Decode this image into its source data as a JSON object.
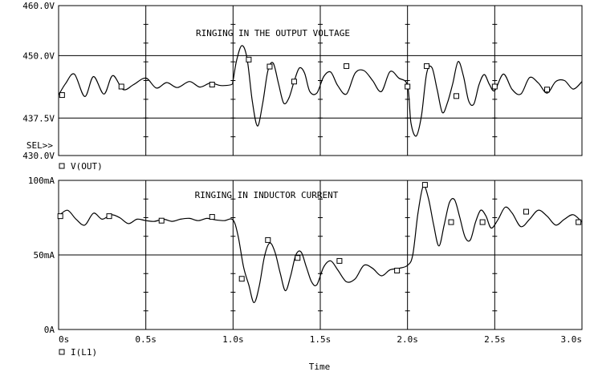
{
  "chart_data": [
    {
      "type": "line",
      "title": "RINGING IN THE OUTPUT VOLTAGE",
      "ylabel": "",
      "xlabel": "",
      "ylim": [
        430,
        460
      ],
      "xlim": [
        0,
        3
      ],
      "yticks": [
        430,
        437.5,
        450,
        460
      ],
      "ytick_labels": [
        "430.0V",
        "437.5V",
        "450.0V",
        "460.0V"
      ],
      "sel_marker": "SEL>>",
      "legend": "V(OUT)",
      "legend_marker": "□",
      "grid": true,
      "series": [
        {
          "name": "V(OUT)",
          "x": [
            0,
            0.04,
            0.09,
            0.15,
            0.2,
            0.26,
            0.31,
            0.37,
            0.43,
            0.5,
            0.56,
            0.62,
            0.68,
            0.75,
            0.81,
            0.87,
            0.93,
            0.99,
            1.0,
            1.02,
            1.05,
            1.08,
            1.11,
            1.14,
            1.17,
            1.2,
            1.23,
            1.26,
            1.29,
            1.32,
            1.35,
            1.38,
            1.41,
            1.44,
            1.48,
            1.52,
            1.56,
            1.6,
            1.65,
            1.7,
            1.75,
            1.8,
            1.85,
            1.9,
            1.95,
            2.0,
            2.02,
            2.05,
            2.08,
            2.11,
            2.14,
            2.17,
            2.2,
            2.23,
            2.26,
            2.29,
            2.32,
            2.35,
            2.38,
            2.41,
            2.44,
            2.47,
            2.5,
            2.55,
            2.6,
            2.65,
            2.7,
            2.75,
            2.8,
            2.85,
            2.9,
            2.95,
            3.0
          ],
          "y": [
            442.1,
            444.4,
            446.3,
            441.8,
            445.8,
            442.3,
            446.0,
            443.2,
            444.2,
            445.5,
            443.5,
            444.6,
            443.6,
            444.8,
            443.7,
            444.5,
            444.0,
            444.2,
            445.0,
            449.0,
            452.0,
            449.5,
            441.0,
            435.9,
            440.5,
            447.0,
            448.5,
            444.5,
            440.5,
            441.5,
            444.8,
            447.5,
            446.5,
            442.8,
            442.5,
            445.8,
            446.7,
            444.0,
            442.3,
            446.5,
            447.0,
            445.0,
            442.8,
            446.8,
            445.5,
            444.0,
            436.5,
            433.9,
            438.0,
            446.5,
            447.6,
            443.2,
            438.6,
            440.7,
            444.5,
            448.8,
            446.0,
            441.0,
            440.3,
            444.2,
            446.2,
            444.2,
            443.0,
            446.3,
            443.2,
            442.3,
            445.6,
            444.5,
            442.5,
            444.8,
            445.0,
            443.3,
            444.8
          ],
          "markers_x": [
            0.02,
            0.36,
            0.88,
            1.09,
            1.21,
            1.35,
            1.65,
            2.0,
            2.11,
            2.28,
            2.5,
            2.8
          ],
          "markers_y": [
            442.1,
            443.8,
            444.2,
            449.2,
            447.8,
            444.8,
            447.9,
            443.8,
            447.9,
            441.9,
            443.8,
            443.2
          ]
        }
      ]
    },
    {
      "type": "line",
      "title": "RINGING IN INDUCTOR CURRENT",
      "ylabel": "",
      "xlabel": "Time",
      "ylim": [
        0,
        100
      ],
      "xlim": [
        0,
        3
      ],
      "yticks": [
        0,
        50,
        100
      ],
      "ytick_labels": [
        "0A",
        "50mA",
        "100mA"
      ],
      "xticks": [
        0,
        0.5,
        1,
        1.5,
        2,
        2.5,
        3
      ],
      "xtick_labels": [
        "0s",
        "0.5s",
        "1.0s",
        "1.5s",
        "2.0s",
        "2.5s",
        "3.0s"
      ],
      "legend": "I(L1)",
      "legend_marker": "□",
      "grid": true,
      "series": [
        {
          "name": "I(L1)",
          "x": [
            0,
            0.05,
            0.1,
            0.15,
            0.2,
            0.25,
            0.3,
            0.35,
            0.4,
            0.45,
            0.5,
            0.55,
            0.6,
            0.65,
            0.7,
            0.75,
            0.8,
            0.85,
            0.9,
            0.95,
            1.0,
            1.03,
            1.06,
            1.09,
            1.12,
            1.15,
            1.18,
            1.21,
            1.24,
            1.27,
            1.3,
            1.33,
            1.36,
            1.39,
            1.42,
            1.45,
            1.48,
            1.52,
            1.56,
            1.6,
            1.65,
            1.7,
            1.75,
            1.8,
            1.85,
            1.9,
            1.95,
            2.0,
            2.03,
            2.06,
            2.09,
            2.12,
            2.15,
            2.18,
            2.21,
            2.24,
            2.27,
            2.3,
            2.33,
            2.36,
            2.39,
            2.42,
            2.45,
            2.48,
            2.52,
            2.56,
            2.6,
            2.65,
            2.7,
            2.75,
            2.8,
            2.85,
            2.9,
            2.95,
            3.0
          ],
          "y": [
            76,
            80,
            74,
            70,
            78,
            74,
            77,
            75,
            71,
            74,
            73,
            72.5,
            74,
            72.5,
            74,
            74.5,
            73,
            74.5,
            73.5,
            73,
            73.5,
            62,
            42,
            30,
            18,
            29,
            49,
            58,
            52,
            38,
            26,
            36,
            50,
            52,
            42,
            32,
            30,
            42,
            46,
            40,
            32,
            34,
            43,
            41,
            36,
            40,
            41,
            43,
            50,
            78,
            96,
            88,
            70,
            56,
            70,
            85,
            87,
            75,
            62,
            60,
            72,
            80,
            76,
            68,
            74,
            82,
            78,
            69,
            74,
            80,
            76,
            70,
            74,
            77,
            72
          ],
          "markers_x": [
            0.01,
            0.29,
            0.59,
            0.88,
            1.05,
            1.2,
            1.37,
            1.61,
            1.94,
            2.1,
            2.25,
            2.43,
            2.68,
            2.98
          ],
          "markers_y": [
            76,
            76,
            73,
            75.5,
            34,
            60,
            48,
            46,
            39.5,
            97,
            72,
            72,
            79,
            72
          ]
        }
      ]
    }
  ]
}
